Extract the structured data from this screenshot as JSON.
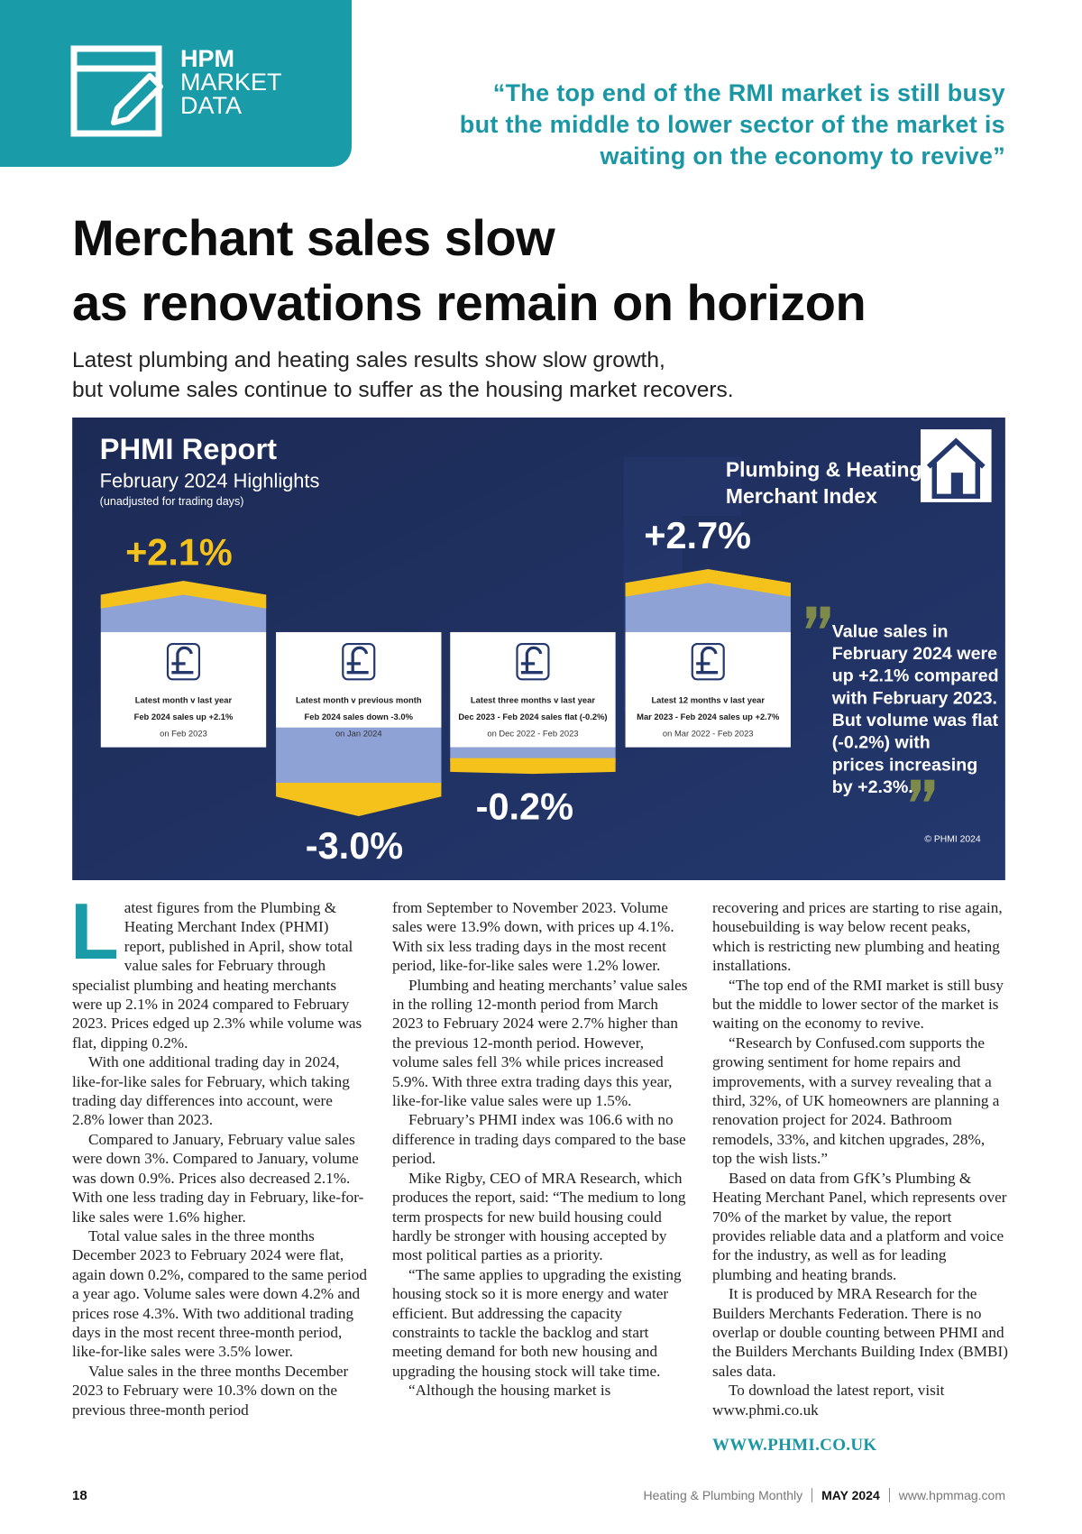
{
  "header": {
    "brand": [
      "HPM",
      "MARKET",
      "DATA"
    ],
    "pull_quote": [
      "“The top end of the RMI market is still busy",
      "but the middle to lower sector of the market is",
      "waiting on the economy to revive”"
    ]
  },
  "headline": [
    "Merchant sales slow",
    "as renovations remain on horizon"
  ],
  "standfirst": [
    "Latest plumbing and heating sales results show slow growth,",
    "but volume sales continue to suffer as the housing market recovers."
  ],
  "infographic": {
    "title": "PHMI Report",
    "subtitle": "February 2024 Highlights",
    "note": "(unadjusted for trading days)",
    "logo": [
      "Plumbing & Heating",
      "Merchant Index"
    ],
    "cards": [
      {
        "figure": "+2.1%",
        "label": "Latest month v last year",
        "detail": "Feb 2024 sales up +2.1%",
        "period": "on Feb 2023"
      },
      {
        "figure": "-3.0%",
        "label": "Latest month v previous month",
        "detail": "Feb 2024 sales down -3.0%",
        "period": "on Jan 2024"
      },
      {
        "figure": "-0.2%",
        "label": "Latest three months v last year",
        "detail": "Dec 2023 - Feb 2024 sales flat (-0.2%)",
        "period": "on Dec 2022 - Feb 2023"
      },
      {
        "figure": "+2.7%",
        "label": "Latest 12 months v last year",
        "detail": "Mar 2023 - Feb 2024 sales up +2.7%",
        "period": "on Mar 2022 - Feb 2023"
      }
    ],
    "quote": [
      "Value sales in",
      "February 2024 were",
      "up +2.1% compared",
      "with February 2023.",
      "But volume was flat",
      "(-0.2%) with",
      "prices increasing",
      "by +2.3%."
    ],
    "copyright": "© PHMI 2024"
  },
  "body": {
    "drop_cap": "L",
    "columns": [
      [
        "atest figures from the Plumbing & Heating Merchant Index (PHMI) report, published in April, show total value sales for February through specialist plumbing and heating merchants were up 2.1% in 2024 compared to February 2023. Prices edged up 2.3% while volume was flat, dipping 0.2%.",
        "With one additional trading day in 2024, like-for-like sales for February, which taking trading day differences into account, were 2.8% lower than 2023.",
        "Compared to January, February value sales were down 3%. Compared to January, volume was down 0.9%. Prices also decreased 2.1%. With one less trading day in February, like-for-like sales were 1.6% higher.",
        "Total value sales in the three months December 2023 to February 2024 were flat, again down 0.2%, compared to the same period a year ago. Volume sales were down 4.2% and prices rose 4.3%. With two additional trading days in the most recent three-month period, like-for-like sales were 3.5% lower.",
        "Value sales in the three months December 2023 to February were 10.3% down on the previous three-month period"
      ],
      [
        "from September to November 2023. Volume sales were 13.9% down, with prices up 4.1%. With six less trading days in the most recent period, like-for-like sales were 1.2% lower.",
        "Plumbing and heating merchants’ value sales in the rolling 12-month period from March 2023 to February 2024 were 2.7% higher than the previous 12-month period. However, volume sales fell 3% while prices increased 5.9%. With three extra trading days this year, like-for-like value sales were up 1.5%.",
        "February’s PHMI index was 106.6 with no difference in trading days compared to the base period.",
        "Mike Rigby, CEO of MRA Research, which produces the report, said: “The medium to long term prospects for new build housing could hardly be stronger with housing accepted by most political parties as a priority.",
        "“The same applies to upgrading the existing housing stock so it is more energy and water efficient. But addressing the capacity constraints to tackle the backlog and start meeting demand for both new housing and upgrading the housing stock will take time.",
        "“Although the housing market is"
      ],
      [
        "recovering and prices are starting to rise again, housebuilding is way below recent peaks, which is restricting new plumbing and heating installations.",
        "“The top end of the RMI market is still busy but the middle to lower sector of the market is waiting on the economy to revive.",
        "“Research by Confused.com supports the growing sentiment for home repairs and improvements, with a survey revealing that a third, 32%, of UK homeowners are planning a renovation project for 2024. Bathroom remodels, 33%, and kitchen upgrades, 28%, top the wish lists.”",
        "Based on data from GfK’s Plumbing & Heating Merchant Panel, which represents over 70% of the market by value, the report provides reliable data and a platform and voice for the industry, as well as for leading plumbing and heating brands.",
        "It is produced by MRA Research for the Builders Merchants Federation. There is no overlap or double counting between PHMI and the Builders Merchants Building Index (BMBI) sales data.",
        "To download the latest report, visit www.phmi.co.uk"
      ]
    ]
  },
  "link": "WWW.PHMI.CO.UK",
  "footer": {
    "page": "18",
    "publication": "Heating & Plumbing Monthly",
    "issue": "MAY 2024",
    "website": "www.hpmmag.com"
  }
}
